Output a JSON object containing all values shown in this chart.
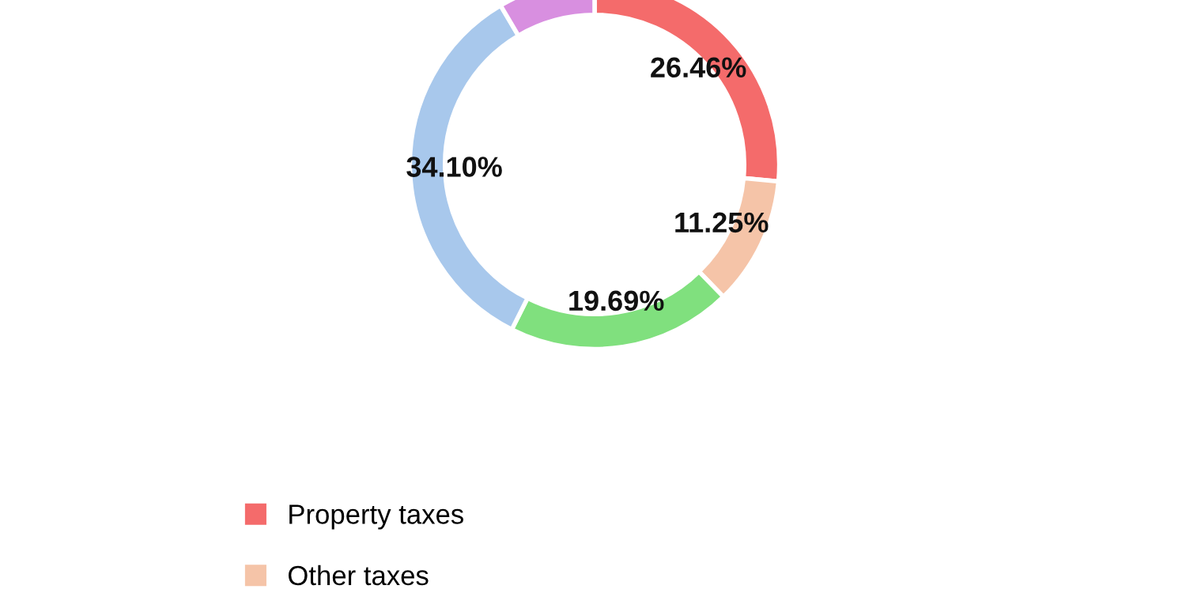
{
  "chart_data": {
    "type": "donut",
    "categories": [
      "Property taxes",
      "Other taxes",
      null,
      null,
      null
    ],
    "values": [
      26.46,
      11.25,
      19.69,
      34.1,
      8.5
    ],
    "colors": [
      "#f46b6b",
      "#f5c4a8",
      "#80e07e",
      "#a8c8ec",
      "#d88fe0"
    ],
    "value_labels": [
      "26.46%",
      "11.25%",
      "19.69%",
      "34.10%",
      null
    ],
    "legend": "bottom"
  }
}
